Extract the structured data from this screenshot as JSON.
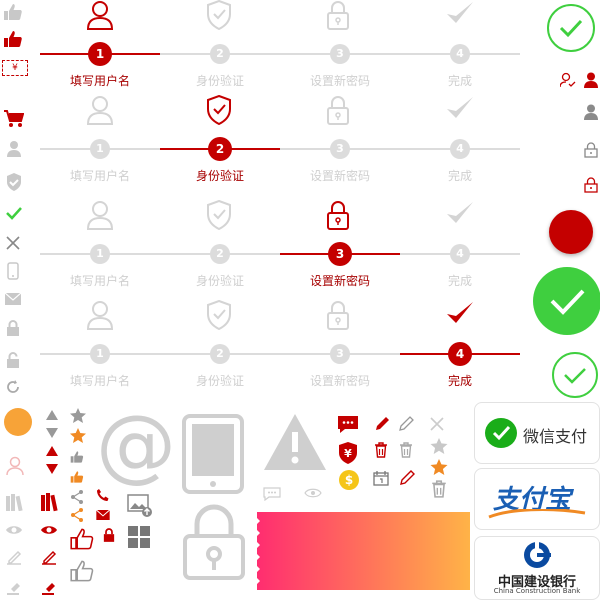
{
  "colors": {
    "brand": "#c40000",
    "inactive": "#dcdcdc",
    "success": "#3fcf3f",
    "orange": "#f7a338"
  },
  "steps": {
    "labels": [
      "填写用户名",
      "身份验证",
      "设置新密码",
      "完成"
    ],
    "numbers": [
      "1",
      "2",
      "3",
      "4"
    ],
    "rows": [
      {
        "active_index": 0
      },
      {
        "active_index": 1
      },
      {
        "active_index": 2
      },
      {
        "active_index": 3
      }
    ]
  },
  "icons": {
    "step_icons": [
      "user-icon",
      "shield-check-icon",
      "lock-icon",
      "checkmark-icon"
    ],
    "left_column": [
      "thumbs-up-icon",
      "thumbs-up-filled-icon",
      "yen-ticket-icon",
      "cart-icon",
      "user-icon",
      "shield-icon",
      "check-icon",
      "close-icon",
      "phone-icon",
      "mail-icon",
      "lock-icon",
      "unlock-icon",
      "refresh-icon",
      "orange-dot",
      "user-outline-icon",
      "books-icon",
      "eye-icon",
      "edit-icon",
      "hammer-icon"
    ]
  },
  "payment": {
    "wechat": {
      "label": "微信支付"
    },
    "alipay": {
      "label": "支付宝"
    },
    "ccb": {
      "label_cn": "中国建设银行",
      "label_en": "China Construction Bank"
    }
  },
  "misc": {
    "at_symbol": "@",
    "yen_symbol": "¥",
    "dollar_symbol": "$"
  }
}
